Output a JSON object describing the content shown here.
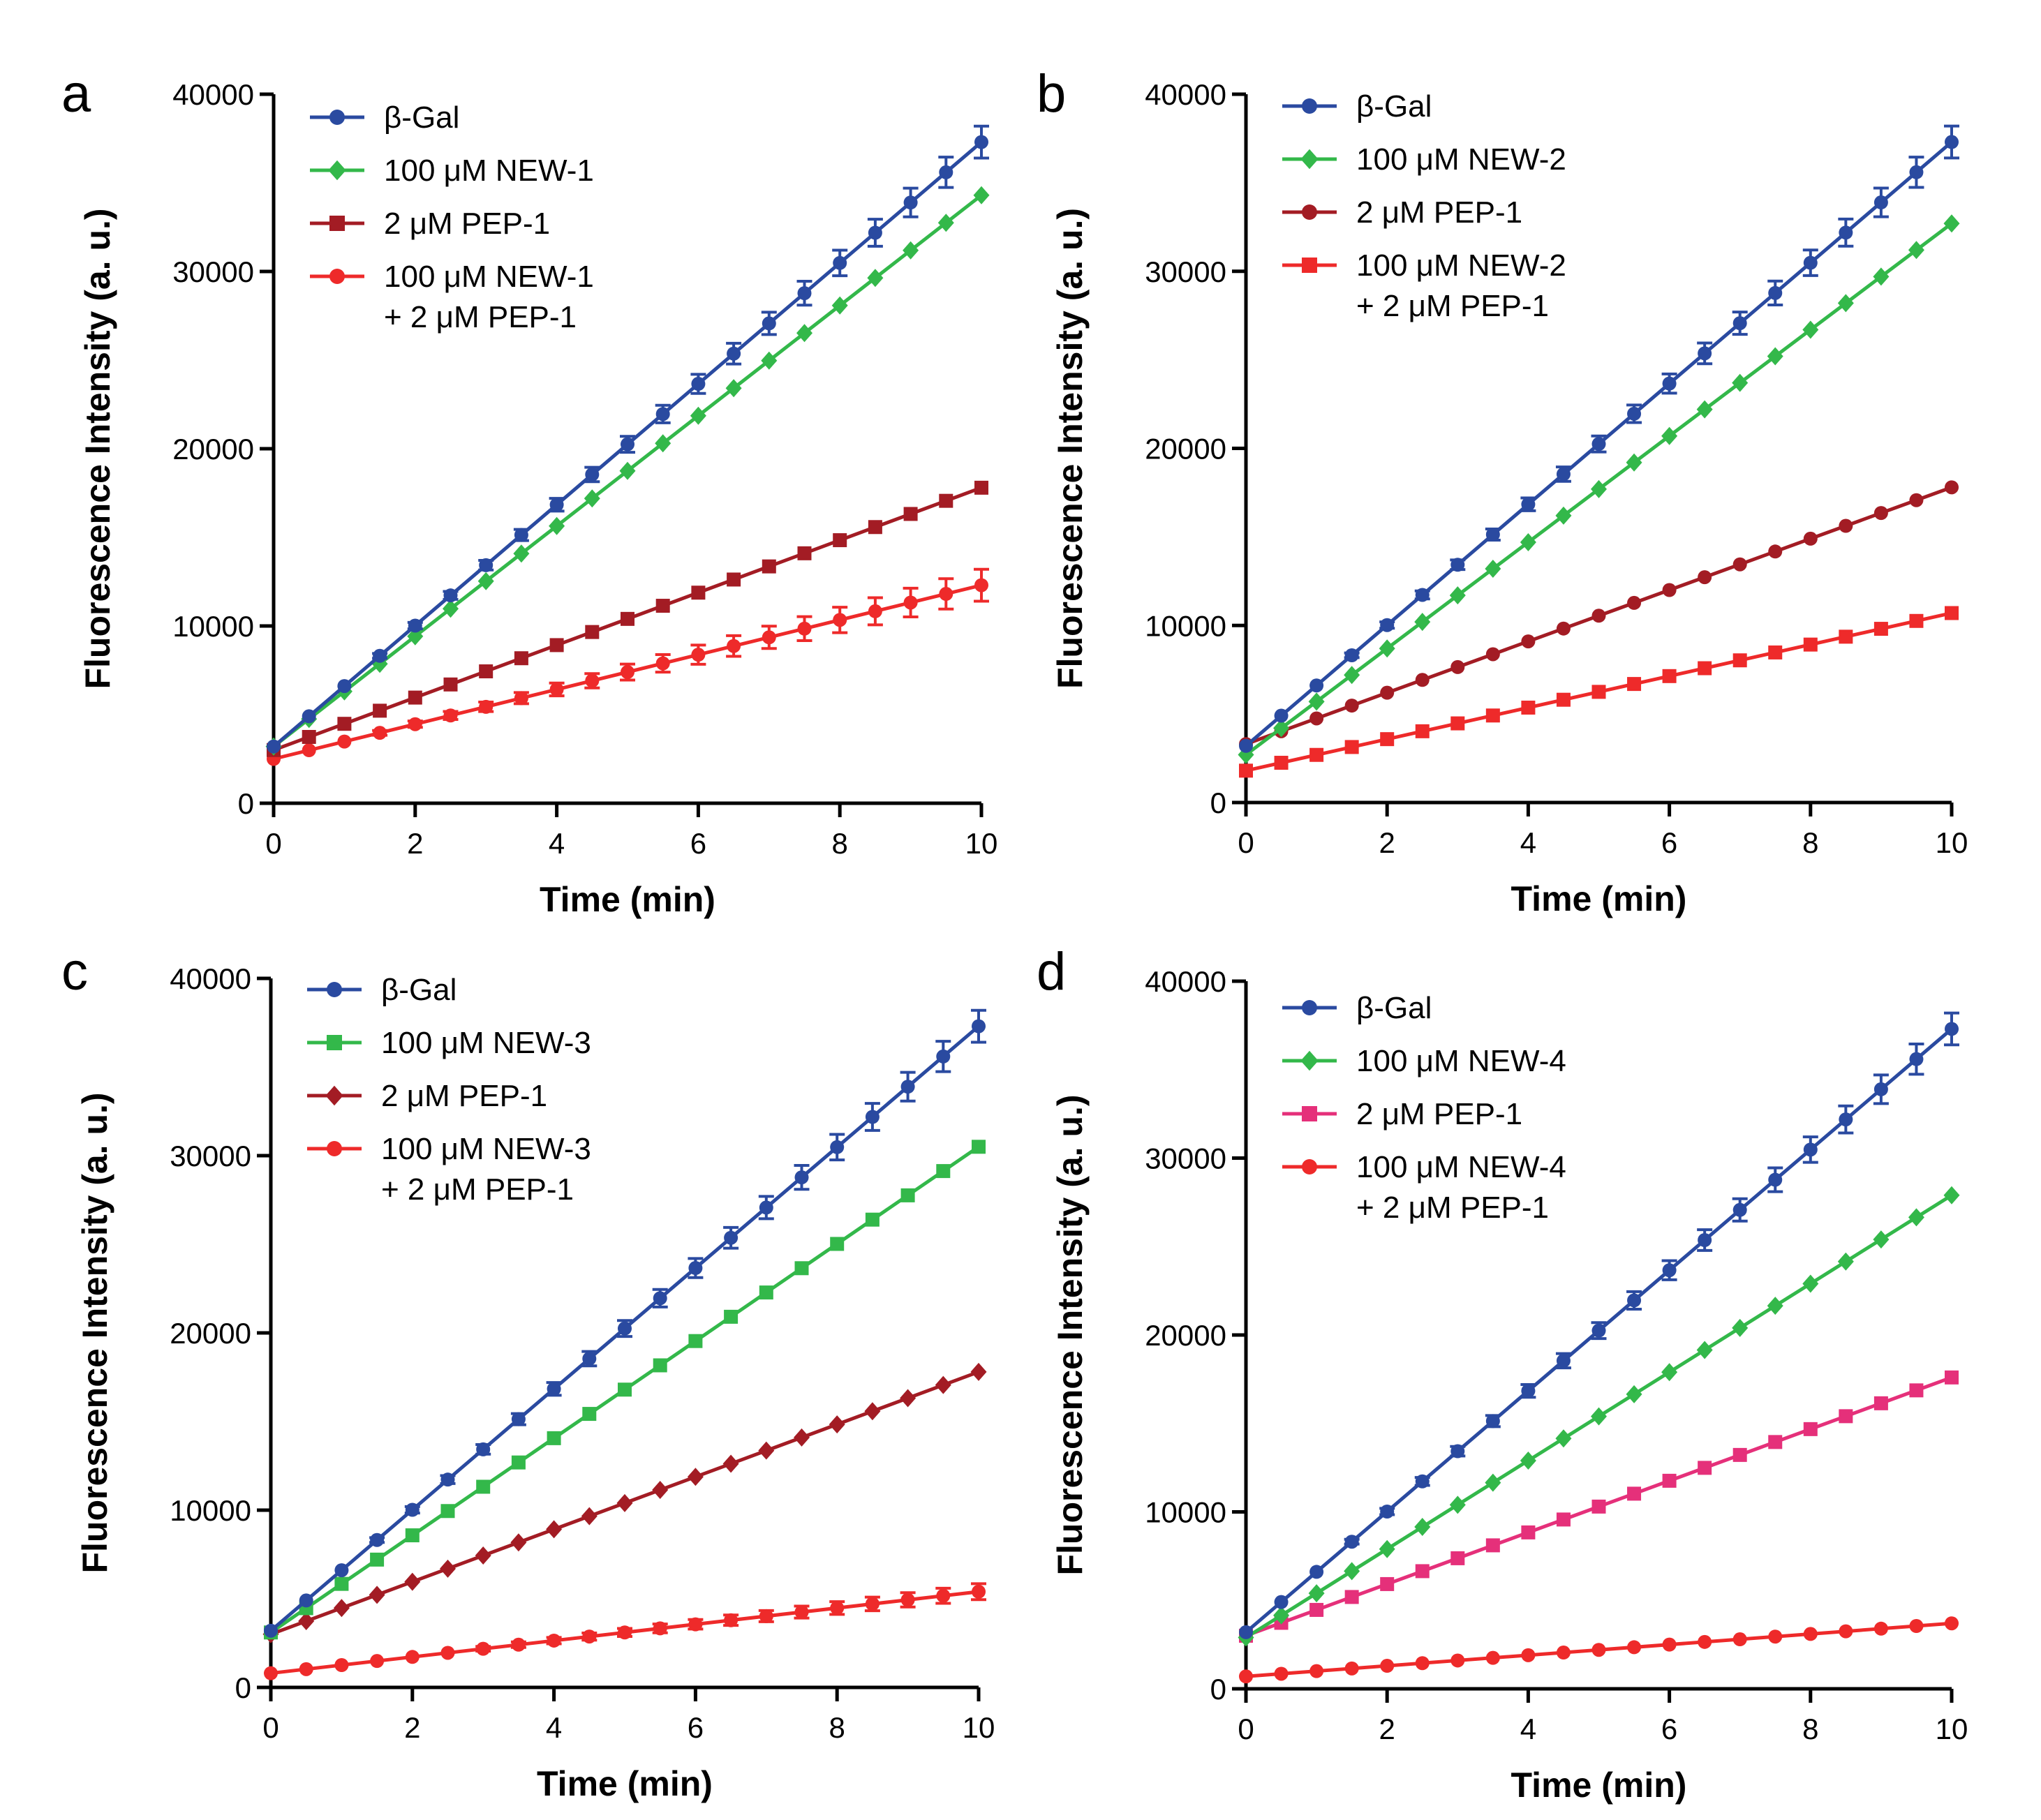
{
  "chart_data": [
    {
      "panel": "a",
      "type": "scatter",
      "xlabel": "Time (min)",
      "ylabel": "Fluorescence Intensity (a. u.)",
      "xlim": [
        0,
        10
      ],
      "ylim": [
        0,
        40000
      ],
      "xticks": [
        "0",
        "2",
        "4",
        "6",
        "8",
        "10"
      ],
      "yticks": [
        "0",
        "10000",
        "20000",
        "30000",
        "40000"
      ],
      "legend_position": "top-left",
      "series": [
        {
          "name": "β-Gal",
          "color": "#2a4aa0",
          "marker": "circle",
          "start": 3200,
          "end": 37300,
          "error": 900
        },
        {
          "name": "100 μM NEW-1",
          "color": "#33b84a",
          "marker": "diamond",
          "start": 3200,
          "end": 34300,
          "error": 0
        },
        {
          "name": "2 μM PEP-1",
          "color": "#a31c24",
          "marker": "square",
          "start": 3000,
          "end": 17800,
          "error": 0
        },
        {
          "name": "100 μM NEW-1\n+ 2 μM PEP-1",
          "color": "#ee2a2a",
          "marker": "circle",
          "start": 2500,
          "end": 12300,
          "error": 900
        }
      ]
    },
    {
      "panel": "b",
      "type": "scatter",
      "xlabel": "Time (min)",
      "ylabel": "Fluorescence Intensity (a. u.)",
      "xlim": [
        0,
        10
      ],
      "ylim": [
        0,
        40000
      ],
      "xticks": [
        "0",
        "2",
        "4",
        "6",
        "8",
        "10"
      ],
      "yticks": [
        "0",
        "10000",
        "20000",
        "30000",
        "40000"
      ],
      "legend_position": "top-left",
      "series": [
        {
          "name": "β-Gal",
          "color": "#2a4aa0",
          "marker": "circle",
          "start": 3200,
          "end": 37300,
          "error": 900
        },
        {
          "name": "100 μM NEW-2",
          "color": "#33b84a",
          "marker": "diamond",
          "start": 2700,
          "end": 32700,
          "error": 0
        },
        {
          "name": "2 μM PEP-1",
          "color": "#a31c24",
          "marker": "circle",
          "start": 3300,
          "end": 17800,
          "error": 0
        },
        {
          "name": "100 μM NEW-2\n+ 2 μM PEP-1",
          "color": "#ee2a2a",
          "marker": "square",
          "start": 1800,
          "end": 10700,
          "error": 0
        }
      ]
    },
    {
      "panel": "c",
      "type": "scatter",
      "xlabel": "Time (min)",
      "ylabel": "Fluorescence Intensity (a. u.)",
      "xlim": [
        0,
        10
      ],
      "ylim": [
        0,
        40000
      ],
      "xticks": [
        "0",
        "2",
        "4",
        "6",
        "8",
        "10"
      ],
      "yticks": [
        "0",
        "10000",
        "20000",
        "30000",
        "40000"
      ],
      "legend_position": "top-left",
      "series": [
        {
          "name": "β-Gal",
          "color": "#2a4aa0",
          "marker": "circle",
          "start": 3200,
          "end": 37300,
          "error": 900
        },
        {
          "name": "100 μM NEW-3",
          "color": "#33b84a",
          "marker": "square",
          "start": 3100,
          "end": 30500,
          "error": 0
        },
        {
          "name": "2 μM PEP-1",
          "color": "#a31c24",
          "marker": "diamond",
          "start": 3000,
          "end": 17800,
          "error": 0
        },
        {
          "name": "100 μM NEW-3\n+ 2 μM PEP-1",
          "color": "#ee2a2a",
          "marker": "circle",
          "start": 800,
          "end": 5400,
          "error": 450
        }
      ]
    },
    {
      "panel": "d",
      "type": "scatter",
      "xlabel": "Time (min)",
      "ylabel": "Fluorescence Intensity (a. u.)",
      "xlim": [
        0,
        10
      ],
      "ylim": [
        0,
        40000
      ],
      "xticks": [
        "0",
        "2",
        "4",
        "6",
        "8",
        "10"
      ],
      "yticks": [
        "0",
        "10000",
        "20000",
        "30000",
        "40000"
      ],
      "legend_position": "top-left",
      "series": [
        {
          "name": "β-Gal",
          "color": "#2a4aa0",
          "marker": "circle",
          "start": 3200,
          "end": 37300,
          "error": 900
        },
        {
          "name": "100 μM NEW-4",
          "color": "#33b84a",
          "marker": "diamond",
          "start": 2900,
          "end": 27900,
          "error": 0
        },
        {
          "name": "2 μM PEP-1",
          "color": "#e5307a",
          "marker": "square",
          "start": 3000,
          "end": 17600,
          "error": 0
        },
        {
          "name": "100 μM NEW-4\n+ 2 μM PEP-1",
          "color": "#ee2a2a",
          "marker": "circle",
          "start": 700,
          "end": 3700,
          "error": 0
        }
      ]
    }
  ]
}
